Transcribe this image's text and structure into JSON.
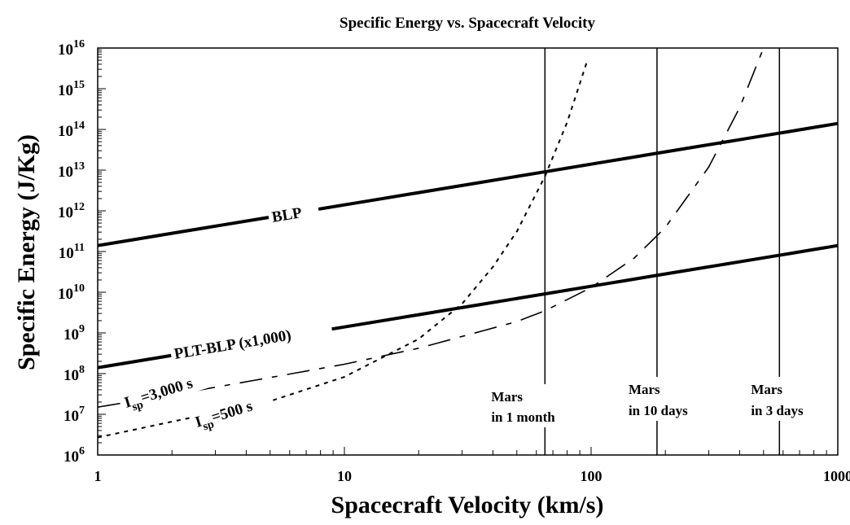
{
  "chart_data": {
    "type": "line",
    "title": "Specific Energy vs. Spacecraft Velocity",
    "xlabel": "Spacecraft Velocity (km/s)",
    "ylabel": "Specific Energy (J/Kg)",
    "x_scale": "log",
    "y_scale": "log",
    "xlim": [
      1,
      1000
    ],
    "ylim": [
      1000000.0,
      1e+16
    ],
    "x_ticks": [
      {
        "value": 1,
        "label": "1"
      },
      {
        "value": 10,
        "label": "10"
      },
      {
        "value": 100,
        "label": "100"
      },
      {
        "value": 1000,
        "label": "1000"
      }
    ],
    "y_ticks": [
      {
        "value": 6,
        "base": "10",
        "exp": "6"
      },
      {
        "value": 7,
        "base": "10",
        "exp": "7"
      },
      {
        "value": 8,
        "base": "10",
        "exp": "8"
      },
      {
        "value": 9,
        "base": "10",
        "exp": "9"
      },
      {
        "value": 10,
        "base": "10",
        "exp": "10"
      },
      {
        "value": 11,
        "base": "10",
        "exp": "11"
      },
      {
        "value": 12,
        "base": "10",
        "exp": "12"
      },
      {
        "value": 13,
        "base": "10",
        "exp": "13"
      },
      {
        "value": 14,
        "base": "10",
        "exp": "14"
      },
      {
        "value": 15,
        "base": "10",
        "exp": "15"
      },
      {
        "value": 16,
        "base": "10",
        "exp": "16"
      }
    ],
    "grid": false,
    "series": [
      {
        "name": "BLP",
        "style": "solid-thick",
        "x": [
          1,
          10,
          65,
          100,
          185,
          580,
          1000
        ],
        "y": [
          140000000000.0,
          1400000000000.0,
          9100000000000.0,
          14000000000000.0,
          26000000000000.0,
          81000000000000.0,
          140000000000000.0
        ]
      },
      {
        "name": "PLT-BLP (x1,000)",
        "style": "solid-thick",
        "x": [
          1,
          10,
          65,
          100,
          185,
          580,
          1000
        ],
        "y": [
          140000000.0,
          1400000000.0,
          9100000000.0,
          14000000000.0,
          26000000000.0,
          81000000000.0,
          140000000000.0
        ]
      },
      {
        "name": "Isp=500 s",
        "label_main": "I",
        "label_sub": "sp",
        "label_rest": "=500 s",
        "style": "dotted",
        "x": [
          1,
          2,
          5,
          10,
          20,
          30,
          40,
          50,
          65,
          80,
          97
        ],
        "y": [
          2700000.0,
          6600000.0,
          21000000.0,
          83000000.0,
          710000000.0,
          5200000000.0,
          42000000000.0,
          310000000000.0,
          7000000000000.0,
          150000000000000.0,
          5400000000000000.0
        ]
      },
      {
        "name": "Isp=3,000 s",
        "label_main": "I",
        "label_sub": "sp",
        "label_rest": "=3,000 s",
        "style": "dash-dot",
        "x": [
          1,
          2,
          5,
          10,
          20,
          50,
          65,
          100,
          150,
          200,
          300,
          400,
          500
        ],
        "y": [
          15000000.0,
          30000000.0,
          80000000.0,
          170000000.0,
          420000000.0,
          1900000000.0,
          3500000000.0,
          13000000000.0,
          70000000000.0,
          390000000000.0,
          12000000000000.0,
          340000000000000.0,
          1e+16
        ]
      }
    ],
    "annotations": [
      {
        "x": 65,
        "line1": "Mars",
        "line2": "in 1 month"
      },
      {
        "x": 185,
        "line1": "Mars",
        "line2": "in 10 days"
      },
      {
        "x": 580,
        "line1": "Mars",
        "line2": "in 3 days"
      }
    ]
  }
}
